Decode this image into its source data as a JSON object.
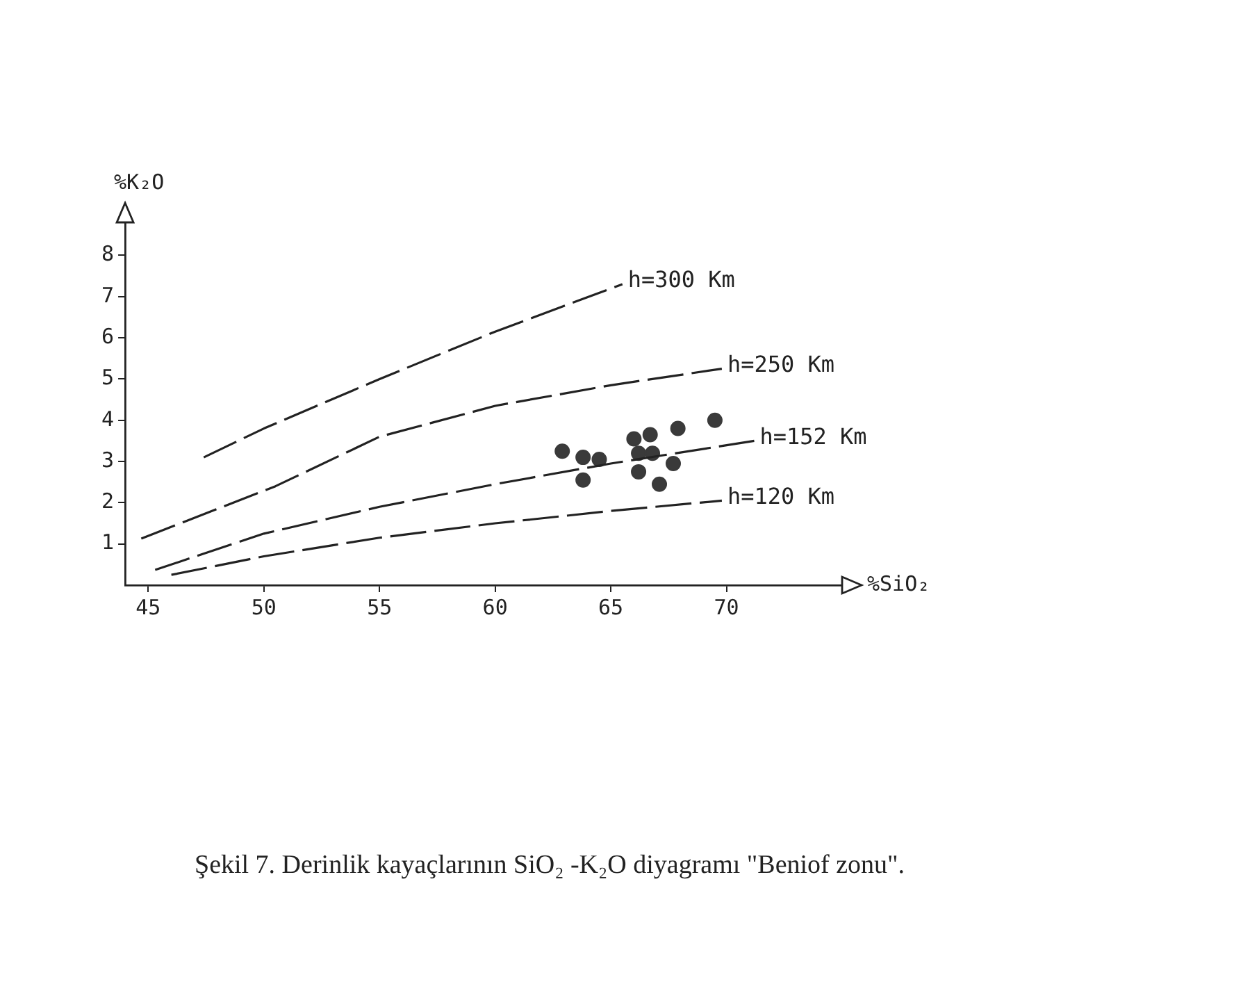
{
  "chart_data": {
    "type": "scatter",
    "xlabel": "%SiO₂",
    "ylabel": "%K₂O",
    "xlim": [
      44,
      75
    ],
    "ylim": [
      0,
      8.8
    ],
    "xticks": [
      45,
      50,
      55,
      60,
      65,
      70
    ],
    "yticks": [
      1,
      2,
      3,
      4,
      5,
      6,
      7,
      8
    ],
    "annotations": [
      "Şekil 7. Derinlik kayaçlarının SiO₂ -K₂O diyagramı \"Beniof zonu\"."
    ],
    "series": [
      {
        "name": "h=300 Km",
        "type": "line",
        "color": "#222222",
        "marker": "none",
        "line_style": "dashed",
        "x": [
          47.4,
          50,
          55,
          60,
          65.5
        ],
        "values": [
          3.1,
          3.8,
          5.0,
          6.15,
          7.3
        ]
      },
      {
        "name": "h=250 Km",
        "type": "line",
        "color": "#222222",
        "marker": "none",
        "line_style": "dashed",
        "x": [
          44.7,
          50.5,
          55,
          60,
          65,
          69.8
        ],
        "values": [
          1.13,
          2.4,
          3.6,
          4.35,
          4.85,
          5.25
        ]
      },
      {
        "name": "h=152 Km",
        "type": "line",
        "color": "#222222",
        "marker": "none",
        "line_style": "dashed",
        "x": [
          45.3,
          50,
          55,
          60,
          65,
          69.5,
          71.2
        ],
        "values": [
          0.37,
          1.25,
          1.9,
          2.45,
          2.95,
          3.35,
          3.5
        ]
      },
      {
        "name": "h=120 Km",
        "type": "line",
        "color": "#222222",
        "marker": "none",
        "line_style": "dashed",
        "x": [
          46.0,
          50,
          55,
          60,
          65,
          69.8
        ],
        "values": [
          0.25,
          0.7,
          1.15,
          1.5,
          1.8,
          2.05
        ]
      },
      {
        "type": "scatter",
        "color": "#3a3a3a",
        "marker": "circle",
        "x": [
          62.9,
          63.8,
          64.5,
          63.8,
          66.0,
          66.7,
          66.2,
          66.8,
          66.2,
          67.1,
          67.9,
          67.7,
          69.5
        ],
        "values": [
          3.25,
          3.1,
          3.05,
          2.55,
          3.55,
          3.65,
          3.2,
          3.2,
          2.75,
          2.45,
          3.8,
          2.95,
          4.0
        ]
      }
    ]
  }
}
